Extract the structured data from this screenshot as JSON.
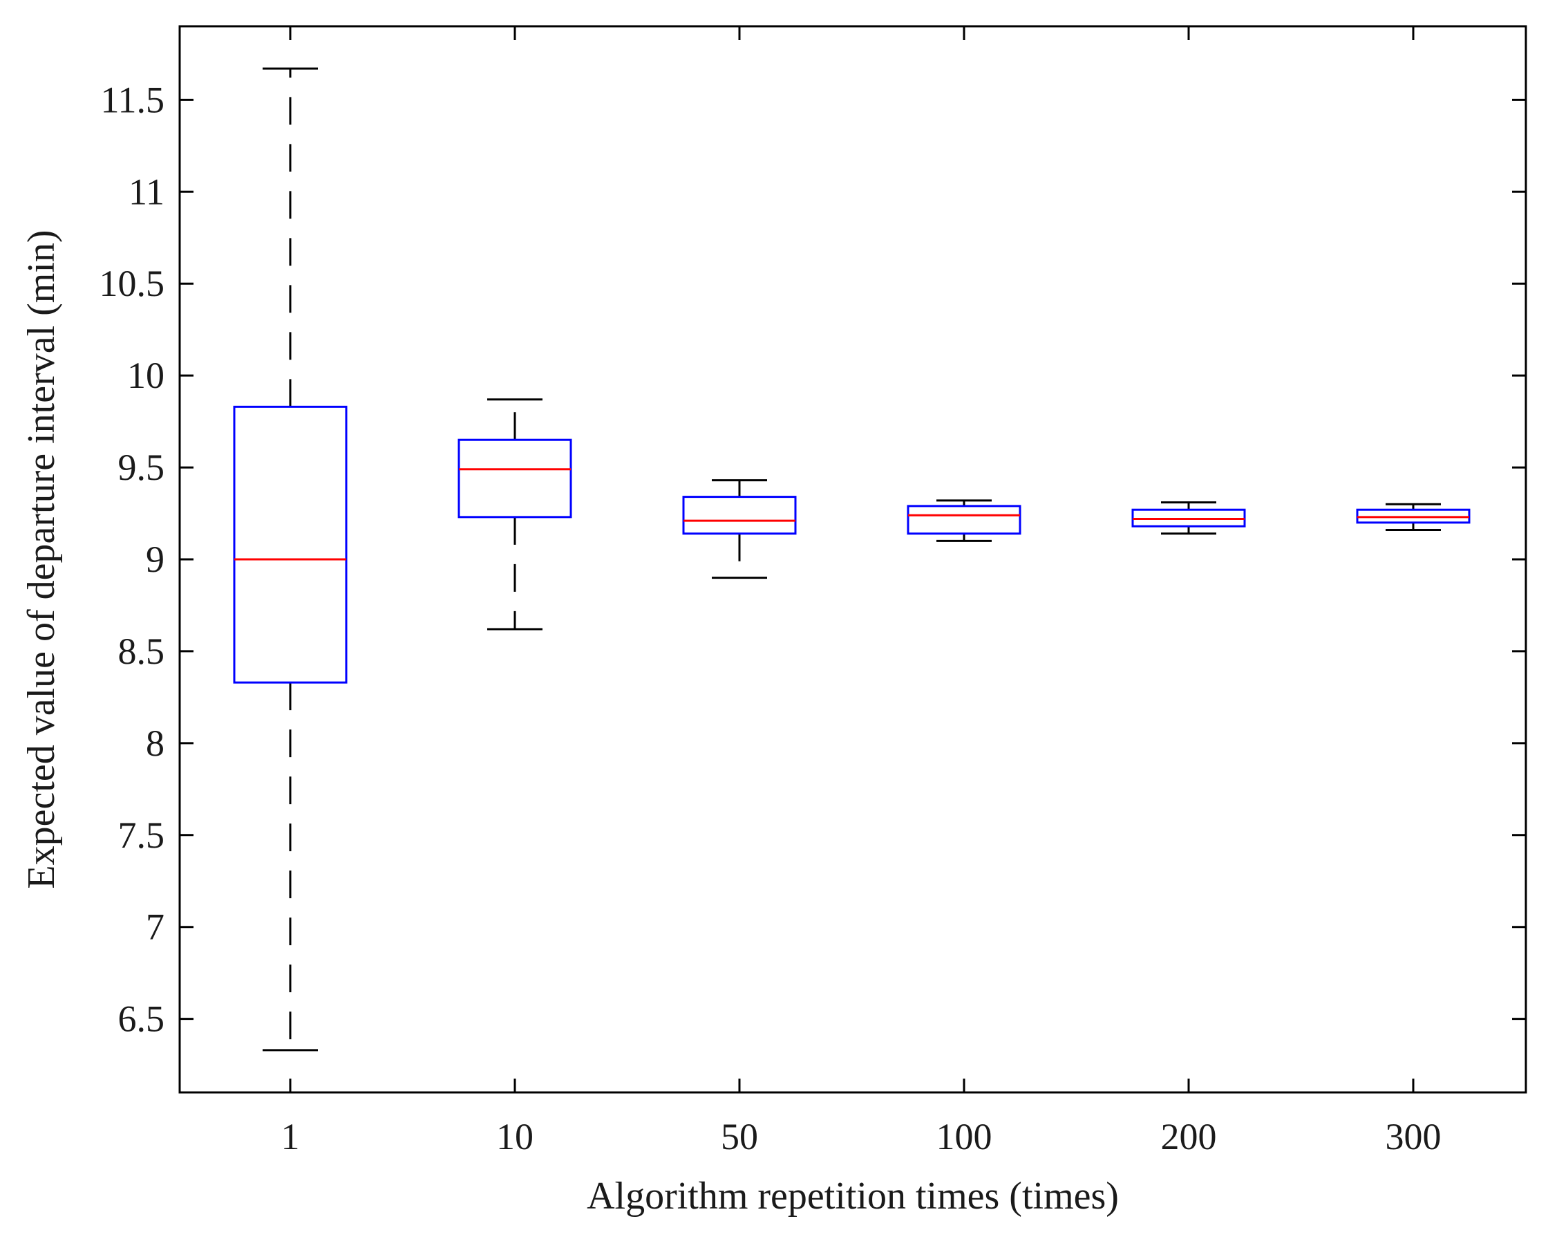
{
  "chart_data": {
    "type": "boxplot",
    "title": "",
    "xlabel": "Algorithm repetition times (times)",
    "ylabel": "Expected value of departure interval (min)",
    "categories": [
      "1",
      "10",
      "50",
      "100",
      "200",
      "300"
    ],
    "ylim": [
      6.1,
      11.9
    ],
    "yticks": [
      6.5,
      7,
      7.5,
      8,
      8.5,
      9,
      9.5,
      10,
      10.5,
      11,
      11.5
    ],
    "ytick_labels": [
      "6.5",
      "7",
      "7.5",
      "8",
      "8.5",
      "9",
      "9.5",
      "10",
      "10.5",
      "11",
      "11.5"
    ],
    "boxes": [
      {
        "category": "1",
        "whisker_low": 6.33,
        "q1": 8.33,
        "median": 9.0,
        "q3": 9.83,
        "whisker_high": 11.67
      },
      {
        "category": "10",
        "whisker_low": 8.62,
        "q1": 9.23,
        "median": 9.49,
        "q3": 9.65,
        "whisker_high": 9.87
      },
      {
        "category": "50",
        "whisker_low": 8.9,
        "q1": 9.14,
        "median": 9.21,
        "q3": 9.34,
        "whisker_high": 9.43
      },
      {
        "category": "100",
        "whisker_low": 9.1,
        "q1": 9.14,
        "median": 9.24,
        "q3": 9.29,
        "whisker_high": 9.32
      },
      {
        "category": "200",
        "whisker_low": 9.14,
        "q1": 9.18,
        "median": 9.22,
        "q3": 9.27,
        "whisker_high": 9.31
      },
      {
        "category": "300",
        "whisker_low": 9.16,
        "q1": 9.2,
        "median": 9.23,
        "q3": 9.27,
        "whisker_high": 9.3
      }
    ],
    "colors": {
      "box": "#0000ff",
      "median": "#ff0000",
      "whisker": "#000000",
      "axis": "#000000"
    },
    "grid": false
  }
}
